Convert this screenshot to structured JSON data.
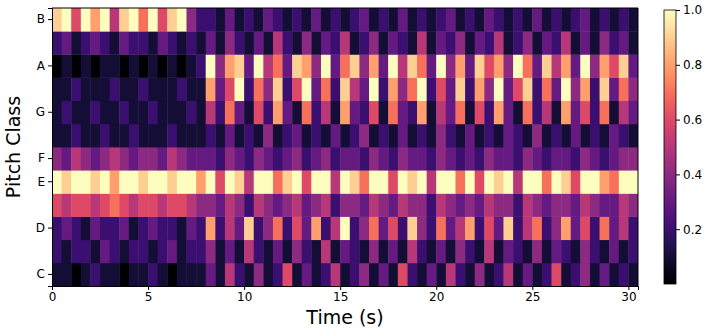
{
  "chart_data": {
    "type": "heatmap",
    "xlabel": "Time (s)",
    "ylabel": "Pitch Class",
    "x": [
      0,
      0.5,
      1,
      1.5,
      2,
      2.5,
      3,
      3.5,
      4,
      4.5,
      5,
      5.5,
      6,
      6.5,
      7,
      7.5,
      8,
      8.5,
      9,
      9.5,
      10,
      10.5,
      11,
      11.5,
      12,
      12.5,
      13,
      13.5,
      14,
      14.5,
      15,
      15.5,
      16,
      16.5,
      17,
      17.5,
      18,
      18.5,
      19,
      19.5,
      20,
      20.5,
      21,
      21.5,
      22,
      22.5,
      23,
      23.5,
      24,
      24.5,
      25,
      25.5,
      26,
      26.5,
      27,
      27.5,
      28,
      28.5,
      29,
      29.5,
      30
    ],
    "xlim": [
      0,
      30.5
    ],
    "xticks": [
      0,
      5,
      10,
      15,
      20,
      25,
      30
    ],
    "categories": [
      "C",
      null,
      "D",
      null,
      "E",
      "F",
      null,
      "G",
      null,
      "A",
      null,
      "B"
    ],
    "cells": [
      [
        0.1,
        0.1,
        0,
        0.1,
        0.2,
        0.1,
        0.1,
        0,
        0.1,
        0.1,
        0.2,
        0.1,
        0,
        0.1,
        0.1,
        0.1,
        0.3,
        0.1,
        0.5,
        0.2,
        0.1,
        0.4,
        0.1,
        0.2,
        0.6,
        0.1,
        0.3,
        0.1,
        0.2,
        0.5,
        0.1,
        0.2,
        0.4,
        0.1,
        0.3,
        0.1,
        0.6,
        0.2,
        0.1,
        0.3,
        0.1,
        0.5,
        0.2,
        0.1,
        0.4,
        0.1,
        0.2,
        0.5,
        0.1,
        0.3,
        0.1,
        0.2,
        0.6,
        0.1,
        0.2,
        0.4,
        0.1,
        0.3,
        0.1,
        0.2,
        0.1
      ],
      [
        0.2,
        0.1,
        0.2,
        0.2,
        0.1,
        0.3,
        0.2,
        0.1,
        0.2,
        0.2,
        0.1,
        0.2,
        0.3,
        0.1,
        0.2,
        0.2,
        0.4,
        0.1,
        0.3,
        0.1,
        0.5,
        0.2,
        0.1,
        0.3,
        0.1,
        0.4,
        0.2,
        0.1,
        0.5,
        0.1,
        0.3,
        0.2,
        0.1,
        0.4,
        0.1,
        0.3,
        0.1,
        0.5,
        0.2,
        0.1,
        0.3,
        0.1,
        0.4,
        0.2,
        0.1,
        0.5,
        0.1,
        0.3,
        0.2,
        0.1,
        0.4,
        0.1,
        0.3,
        0.2,
        0.1,
        0.4,
        0.2,
        0.1,
        0.3,
        0.1,
        0.2
      ],
      [
        0.2,
        0.3,
        0.2,
        0.1,
        0.3,
        0.2,
        0.2,
        0.3,
        0.1,
        0.2,
        0.3,
        0.2,
        0.2,
        0.1,
        0.3,
        0.2,
        0.8,
        0.2,
        0.5,
        0.3,
        0.9,
        0.2,
        0.4,
        0.7,
        0.2,
        0.6,
        0.3,
        0.8,
        0.2,
        0.5,
        1,
        0.2,
        0.4,
        0.7,
        0.3,
        0.6,
        0.2,
        0.9,
        0.4,
        0.2,
        0.7,
        0.3,
        0.5,
        0.8,
        0.2,
        0.6,
        0.3,
        0.9,
        0.2,
        0.5,
        0.7,
        0.2,
        0.4,
        0.8,
        0.3,
        0.6,
        0.2,
        0.7,
        0.3,
        0.5,
        0.2
      ],
      [
        0.6,
        0.5,
        0.6,
        0.6,
        0.5,
        0.6,
        0.7,
        0.6,
        0.5,
        0.6,
        0.6,
        0.5,
        0.6,
        0.6,
        0.5,
        0.4,
        0.4,
        0.3,
        0.5,
        0.4,
        0.2,
        0.5,
        0.4,
        0.3,
        0.4,
        0.5,
        0.3,
        0.4,
        0.5,
        0.2,
        0.4,
        0.4,
        0.3,
        0.5,
        0.4,
        0.3,
        0.5,
        0.4,
        0.4,
        0.2,
        0.5,
        0.4,
        0.3,
        0.4,
        0.3,
        0.5,
        0.4,
        0.4,
        0.2,
        0.5,
        0.4,
        0.3,
        0.4,
        0.4,
        0.3,
        0.5,
        0.4,
        0.3,
        0.3,
        0.5,
        0.4
      ],
      [
        1,
        0.9,
        1,
        1,
        0.9,
        1,
        0.8,
        1,
        1,
        0.9,
        1,
        1,
        0.9,
        1,
        1,
        0.8,
        1,
        0.6,
        1,
        0.9,
        0.5,
        1,
        1,
        0.7,
        0.9,
        1,
        0.6,
        1,
        1,
        0.5,
        1,
        0.9,
        0.7,
        1,
        1,
        0.6,
        1,
        0.9,
        1,
        0.5,
        1,
        1,
        0.7,
        1,
        0.6,
        1,
        0.9,
        1,
        0.5,
        1,
        1,
        0.7,
        1,
        0.9,
        0.6,
        1,
        1,
        0.8,
        0.7,
        1,
        1
      ],
      [
        0.4,
        0.3,
        0.5,
        0.4,
        0.3,
        0.4,
        0.5,
        0.4,
        0.3,
        0.4,
        0.4,
        0.3,
        0.5,
        0.4,
        0.3,
        0.3,
        0.3,
        0.2,
        0.4,
        0.3,
        0.2,
        0.4,
        0.3,
        0.2,
        0.3,
        0.4,
        0.2,
        0.3,
        0.4,
        0.2,
        0.3,
        0.3,
        0.2,
        0.4,
        0.3,
        0.2,
        0.4,
        0.3,
        0.3,
        0.2,
        0.4,
        0.3,
        0.2,
        0.3,
        0.2,
        0.4,
        0.3,
        0.3,
        0.2,
        0.4,
        0.3,
        0.2,
        0.3,
        0.3,
        0.2,
        0.4,
        0.3,
        0.2,
        0.3,
        0.4,
        0.4
      ],
      [
        0.1,
        0.1,
        0.2,
        0.1,
        0.1,
        0.2,
        0.1,
        0.1,
        0.2,
        0.1,
        0.1,
        0.1,
        0.2,
        0.1,
        0.1,
        0.1,
        0.2,
        0.1,
        0.3,
        0.1,
        0.2,
        0.1,
        0.4,
        0.1,
        0.2,
        0.3,
        0.1,
        0.2,
        0.1,
        0.3,
        0.1,
        0.2,
        0.4,
        0.1,
        0.2,
        0.1,
        0.3,
        0.1,
        0.2,
        0.1,
        0.4,
        0.2,
        0.1,
        0.3,
        0.1,
        0.2,
        0.1,
        0.3,
        0.2,
        0.1,
        0.4,
        0.1,
        0.2,
        0.1,
        0.3,
        0.1,
        0.2,
        0.1,
        0.3,
        0.2,
        0.1
      ],
      [
        0.1,
        0.2,
        0.1,
        0.1,
        0.2,
        0.1,
        0.1,
        0.2,
        0.1,
        0.1,
        0.2,
        0.1,
        0.1,
        0.1,
        0.2,
        0.1,
        0.5,
        0.2,
        0.7,
        0.3,
        0.1,
        0.6,
        0.2,
        0.8,
        0.3,
        0.1,
        0.7,
        0.2,
        0.5,
        0.1,
        0.8,
        0.3,
        0.2,
        0.6,
        0.1,
        0.7,
        0.3,
        0.2,
        0.8,
        0.1,
        0.5,
        0.3,
        0.7,
        0.1,
        0.6,
        0.2,
        0.8,
        0.3,
        0.1,
        0.7,
        0.2,
        0.5,
        0.1,
        0.8,
        0.3,
        0.6,
        0.2,
        0.7,
        0.1,
        0.5,
        0.3
      ],
      [
        0.1,
        0.1,
        0.2,
        0.1,
        0.1,
        0.1,
        0.2,
        0.1,
        0.1,
        0.2,
        0.1,
        0.1,
        0.1,
        0.2,
        0.1,
        0.1,
        0.8,
        0.3,
        0.6,
        1,
        0.2,
        0.7,
        0.4,
        0.9,
        0.2,
        0.6,
        1,
        0.3,
        0.7,
        0.2,
        0.9,
        0.5,
        0.3,
        1,
        0.2,
        0.8,
        0.4,
        0.7,
        1,
        0.2,
        0.6,
        0.3,
        0.9,
        0.2,
        0.8,
        0.4,
        1,
        0.3,
        0.6,
        0.9,
        0.2,
        0.7,
        0.3,
        1,
        0.4,
        0.8,
        0.2,
        0.9,
        0.3,
        0.7,
        0.4
      ],
      [
        0,
        0.1,
        0,
        0.1,
        0,
        0.1,
        0.1,
        0,
        0.1,
        0,
        0.1,
        0,
        0.1,
        0,
        0.1,
        0.2,
        1,
        0.4,
        0.8,
        0.9,
        0.3,
        1,
        0.5,
        0.7,
        0.3,
        0.9,
        0.8,
        0.4,
        1,
        0.3,
        0.7,
        0.9,
        0.4,
        0.8,
        0.3,
        1,
        0.5,
        0.9,
        0.7,
        0.3,
        1,
        0.4,
        0.8,
        0.3,
        0.9,
        0.6,
        0.8,
        0.4,
        1,
        0.7,
        0.3,
        0.9,
        0.5,
        0.8,
        0.3,
        1,
        0.4,
        0.8,
        0.6,
        0.9,
        0.3
      ],
      [
        0.2,
        0.3,
        0.1,
        0.2,
        0.3,
        0.2,
        0.1,
        0.3,
        0.2,
        0.2,
        0.1,
        0.3,
        0.2,
        0.1,
        0.2,
        0.1,
        0.3,
        0.1,
        0.4,
        0.2,
        0.1,
        0.3,
        0.1,
        0.5,
        0.2,
        0.1,
        0.4,
        0.1,
        0.3,
        0.2,
        0.5,
        0.1,
        0.2,
        0.4,
        0.1,
        0.3,
        0.2,
        0.1,
        0.5,
        0.1,
        0.3,
        0.2,
        0.4,
        0.1,
        0.3,
        0.2,
        0.5,
        0.1,
        0.2,
        0.4,
        0.1,
        0.3,
        0.2,
        0.5,
        0.1,
        0.3,
        0.1,
        0.4,
        0.2,
        0.3,
        0.1
      ],
      [
        0.9,
        1,
        0.6,
        1,
        0.8,
        1,
        0.5,
        0.9,
        1,
        0.7,
        1,
        0.6,
        0.9,
        1,
        0.4,
        0.2,
        0.2,
        0.1,
        0.3,
        0.1,
        0.2,
        0.1,
        0.3,
        0.2,
        0.1,
        0.2,
        0.1,
        0.3,
        0.1,
        0.2,
        0.1,
        0.2,
        0.3,
        0.1,
        0.2,
        0.1,
        0.3,
        0.1,
        0.2,
        0.1,
        0.2,
        0.3,
        0.1,
        0.2,
        0.1,
        0.3,
        0.2,
        0.1,
        0.2,
        0.1,
        0.3,
        0.1,
        0.2,
        0.1,
        0.2,
        0.3,
        0.1,
        0.2,
        0.1,
        0.2,
        0.1
      ]
    ],
    "colorbar": {
      "range": [
        0,
        1
      ],
      "ticks": [
        0.2,
        0.4,
        0.6,
        0.8,
        {
          "value": 1,
          "label": "1.0"
        }
      ]
    }
  }
}
